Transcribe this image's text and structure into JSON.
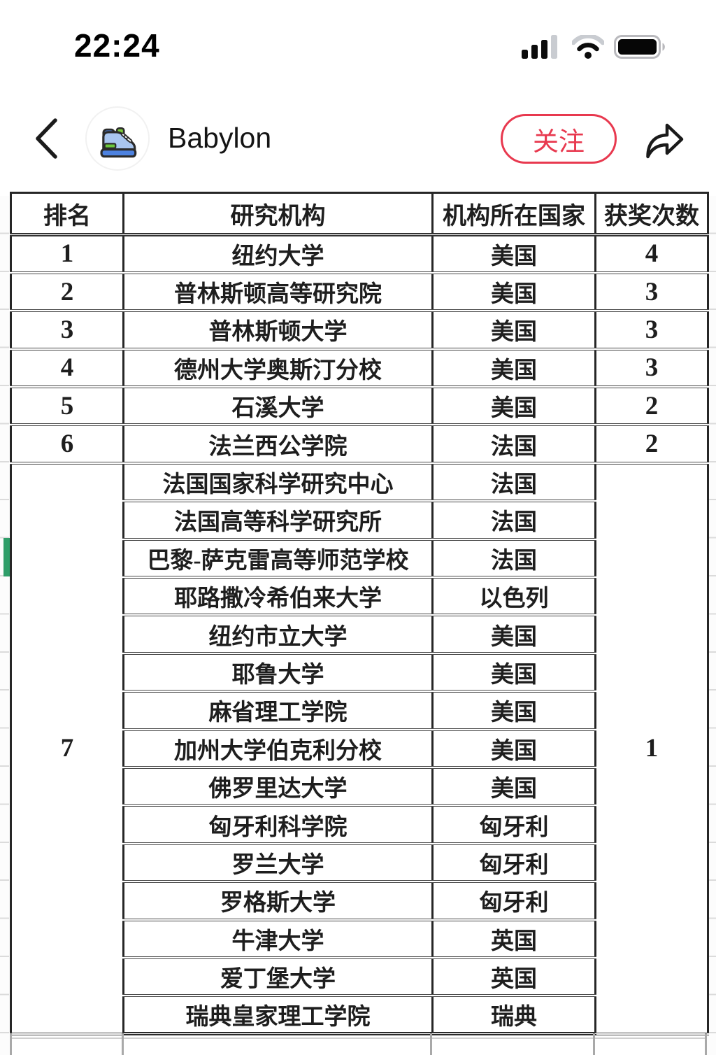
{
  "colors": {
    "accent": "#e8394f",
    "green_marker": "#2f9e69"
  },
  "status_bar": {
    "time": "22:24"
  },
  "nav": {
    "username": "Babylon",
    "follow_label": "关注"
  },
  "table": {
    "headers": [
      "排名",
      "研究机构",
      "机构所在国家",
      "获奖次数"
    ],
    "groups": [
      {
        "rank": "1",
        "count": "4",
        "rows": [
          {
            "institution": "纽约大学",
            "country": "美国"
          }
        ]
      },
      {
        "rank": "2",
        "count": "3",
        "rows": [
          {
            "institution": "普林斯顿高等研究院",
            "country": "美国"
          }
        ]
      },
      {
        "rank": "3",
        "count": "3",
        "rows": [
          {
            "institution": "普林斯顿大学",
            "country": "美国"
          }
        ]
      },
      {
        "rank": "4",
        "count": "3",
        "rows": [
          {
            "institution": "德州大学奥斯汀分校",
            "country": "美国"
          }
        ]
      },
      {
        "rank": "5",
        "count": "2",
        "rows": [
          {
            "institution": "石溪大学",
            "country": "美国"
          }
        ]
      },
      {
        "rank": "6",
        "count": "2",
        "rows": [
          {
            "institution": "法兰西公学院",
            "country": "法国"
          }
        ]
      },
      {
        "rank": "7",
        "count": "1",
        "rows": [
          {
            "institution": "法国国家科学研究中心",
            "country": "法国"
          },
          {
            "institution": "法国高等科学研究所",
            "country": "法国"
          },
          {
            "institution": "巴黎-萨克雷高等师范学校",
            "country": "法国"
          },
          {
            "institution": "耶路撒冷希伯来大学",
            "country": "以色列"
          },
          {
            "institution": "纽约市立大学",
            "country": "美国"
          },
          {
            "institution": "耶鲁大学",
            "country": "美国"
          },
          {
            "institution": "麻省理工学院",
            "country": "美国"
          },
          {
            "institution": "加州大学伯克利分校",
            "country": "美国"
          },
          {
            "institution": "佛罗里达大学",
            "country": "美国"
          },
          {
            "institution": "匈牙利科学院",
            "country": "匈牙利"
          },
          {
            "institution": "罗兰大学",
            "country": "匈牙利"
          },
          {
            "institution": "罗格斯大学",
            "country": "匈牙利"
          },
          {
            "institution": "牛津大学",
            "country": "英国"
          },
          {
            "institution": "爱丁堡大学",
            "country": "英国"
          },
          {
            "institution": "瑞典皇家理工学院",
            "country": "瑞典"
          }
        ]
      }
    ]
  }
}
